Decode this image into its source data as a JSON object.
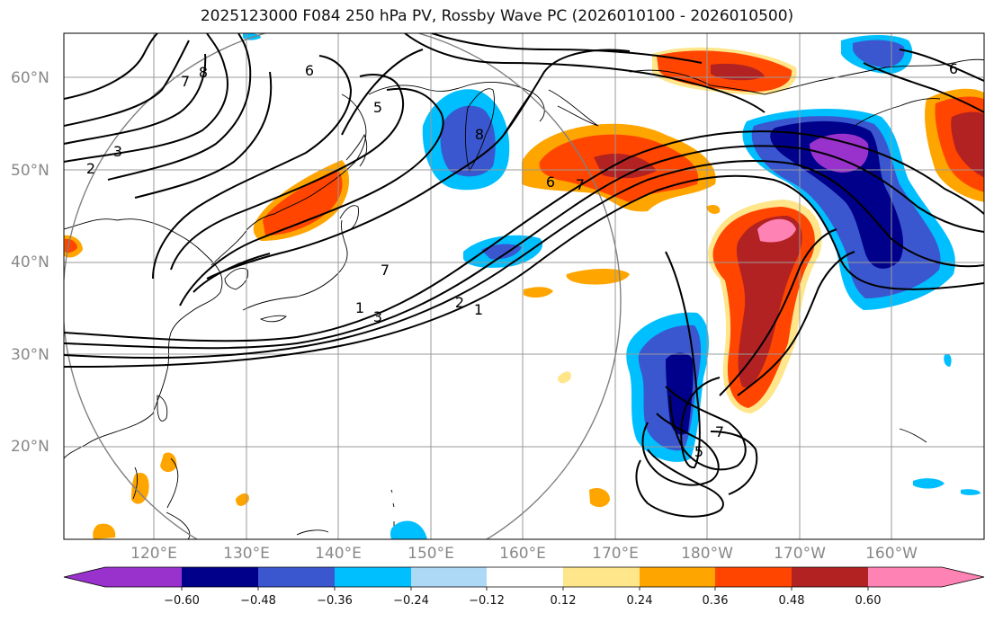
{
  "title": "2025123000 F084 250 hPa PV, Rossby Wave PC (2026010100 - 2026010500)",
  "lat_labels": [
    "60°N",
    "50°N",
    "40°N",
    "30°N",
    "20°N"
  ],
  "lon_labels": [
    "120°E",
    "130°E",
    "140°E",
    "150°E",
    "160°E",
    "170°E",
    "180°W",
    "170°W",
    "160°W"
  ],
  "contour_labels": [
    "8",
    "7",
    "6",
    "5",
    "3",
    "2",
    "8",
    "7",
    "2",
    "1",
    "6",
    "7",
    "3",
    "1",
    "5",
    "7",
    "6"
  ],
  "colorbar": {
    "ticks": [
      "−0.60",
      "−0.48",
      "−0.36",
      "−0.24",
      "−0.12",
      "0.12",
      "0.24",
      "0.36",
      "0.48",
      "0.60"
    ],
    "colors": [
      "#9932cc",
      "#00008b",
      "#3a57d0",
      "#00bfff",
      "#add8f6",
      "#ffffff",
      "#ffe68a",
      "#ffa500",
      "#ff4500",
      "#b22222",
      "#ff82b4"
    ]
  },
  "colors": {
    "positive_low": "#ffe68a",
    "positive_mid": "#ffa500",
    "positive_high": "#ff4500",
    "positive_max": "#b22222",
    "positive_peak": "#ff82b4",
    "negative_low": "#add8f6",
    "negative_mid": "#00bfff",
    "negative_high": "#3a57d0",
    "negative_max": "#00008b",
    "negative_peak": "#9932cc"
  }
}
